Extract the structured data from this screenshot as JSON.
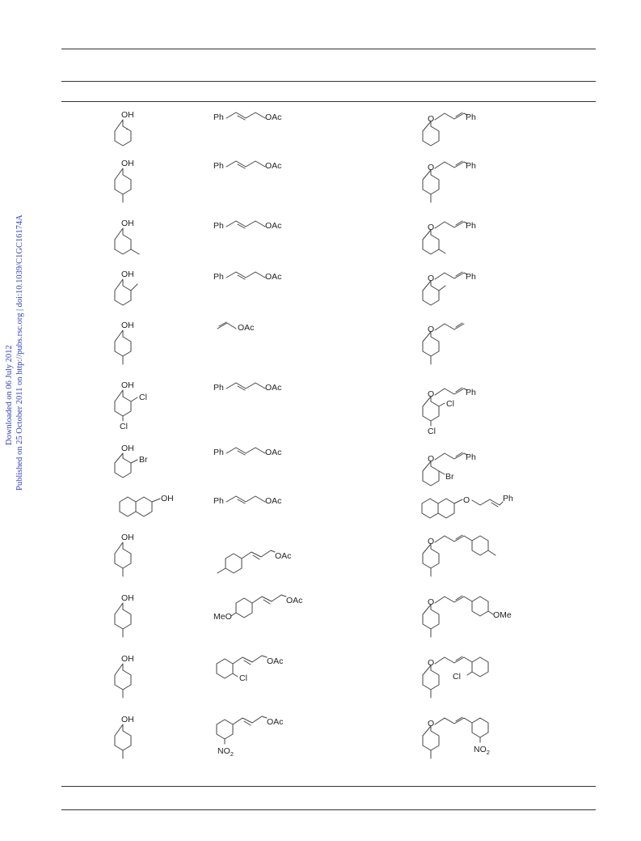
{
  "sidebar": {
    "line1": "Downloaded on 06 July 2012",
    "line2": "Published on 25 October 2011 on http://pubs.rsc.org | doi:10.1039/C1GC16174A"
  },
  "rows": [
    {
      "phenol": {
        "groups": [
          "OH"
        ]
      },
      "acetate": {
        "labels": [
          "Ph",
          "OAc"
        ]
      },
      "product": {
        "labels": [
          "O",
          "Ph"
        ]
      }
    },
    {
      "phenol": {
        "groups": [
          "OH"
        ]
      },
      "acetate": {
        "labels": [
          "Ph",
          "OAc"
        ]
      },
      "product": {
        "labels": [
          "O",
          "Ph"
        ]
      }
    },
    {
      "phenol": {
        "groups": [
          "OH"
        ]
      },
      "acetate": {
        "labels": [
          "Ph",
          "OAc"
        ]
      },
      "product": {
        "labels": [
          "O",
          "Ph"
        ]
      }
    },
    {
      "phenol": {
        "groups": [
          "OH"
        ]
      },
      "acetate": {
        "labels": [
          "Ph",
          "OAc"
        ]
      },
      "product": {
        "labels": [
          "O",
          "Ph"
        ]
      }
    },
    {
      "phenol": {
        "groups": [
          "OH"
        ]
      },
      "acetate": {
        "labels": [
          "OAc"
        ]
      },
      "product": {
        "labels": [
          "O"
        ]
      }
    },
    {
      "phenol": {
        "groups": [
          "OH",
          "Cl",
          "Cl"
        ]
      },
      "acetate": {
        "labels": [
          "Ph",
          "OAc"
        ]
      },
      "product": {
        "labels": [
          "O",
          "Ph",
          "Cl",
          "Cl"
        ]
      }
    },
    {
      "phenol": {
        "groups": [
          "OH",
          "Br"
        ]
      },
      "acetate": {
        "labels": [
          "Ph",
          "OAc"
        ]
      },
      "product": {
        "labels": [
          "O",
          "Ph",
          "Br"
        ]
      }
    },
    {
      "phenol": {
        "groups": [
          "OH"
        ]
      },
      "acetate": {
        "labels": [
          "Ph",
          "OAc"
        ]
      },
      "product": {
        "labels": [
          "O",
          "Ph"
        ]
      }
    },
    {
      "phenol": {
        "groups": [
          "OH"
        ]
      },
      "acetate": {
        "labels": [
          "OAc"
        ]
      },
      "product": {
        "labels": [
          "O"
        ]
      }
    },
    {
      "phenol": {
        "groups": [
          "OH"
        ]
      },
      "acetate": {
        "labels": [
          "MeO",
          "OAc"
        ]
      },
      "product": {
        "labels": [
          "O",
          "OMe"
        ]
      }
    },
    {
      "phenol": {
        "groups": [
          "OH"
        ]
      },
      "acetate": {
        "labels": [
          "Cl",
          "OAc"
        ]
      },
      "product": {
        "labels": [
          "O",
          "Cl"
        ]
      }
    },
    {
      "phenol": {
        "groups": [
          "OH"
        ]
      },
      "acetate": {
        "labels": [
          "NO",
          "2",
          "OAc"
        ]
      },
      "product": {
        "labels": [
          "O",
          "NO",
          "2"
        ]
      }
    }
  ]
}
